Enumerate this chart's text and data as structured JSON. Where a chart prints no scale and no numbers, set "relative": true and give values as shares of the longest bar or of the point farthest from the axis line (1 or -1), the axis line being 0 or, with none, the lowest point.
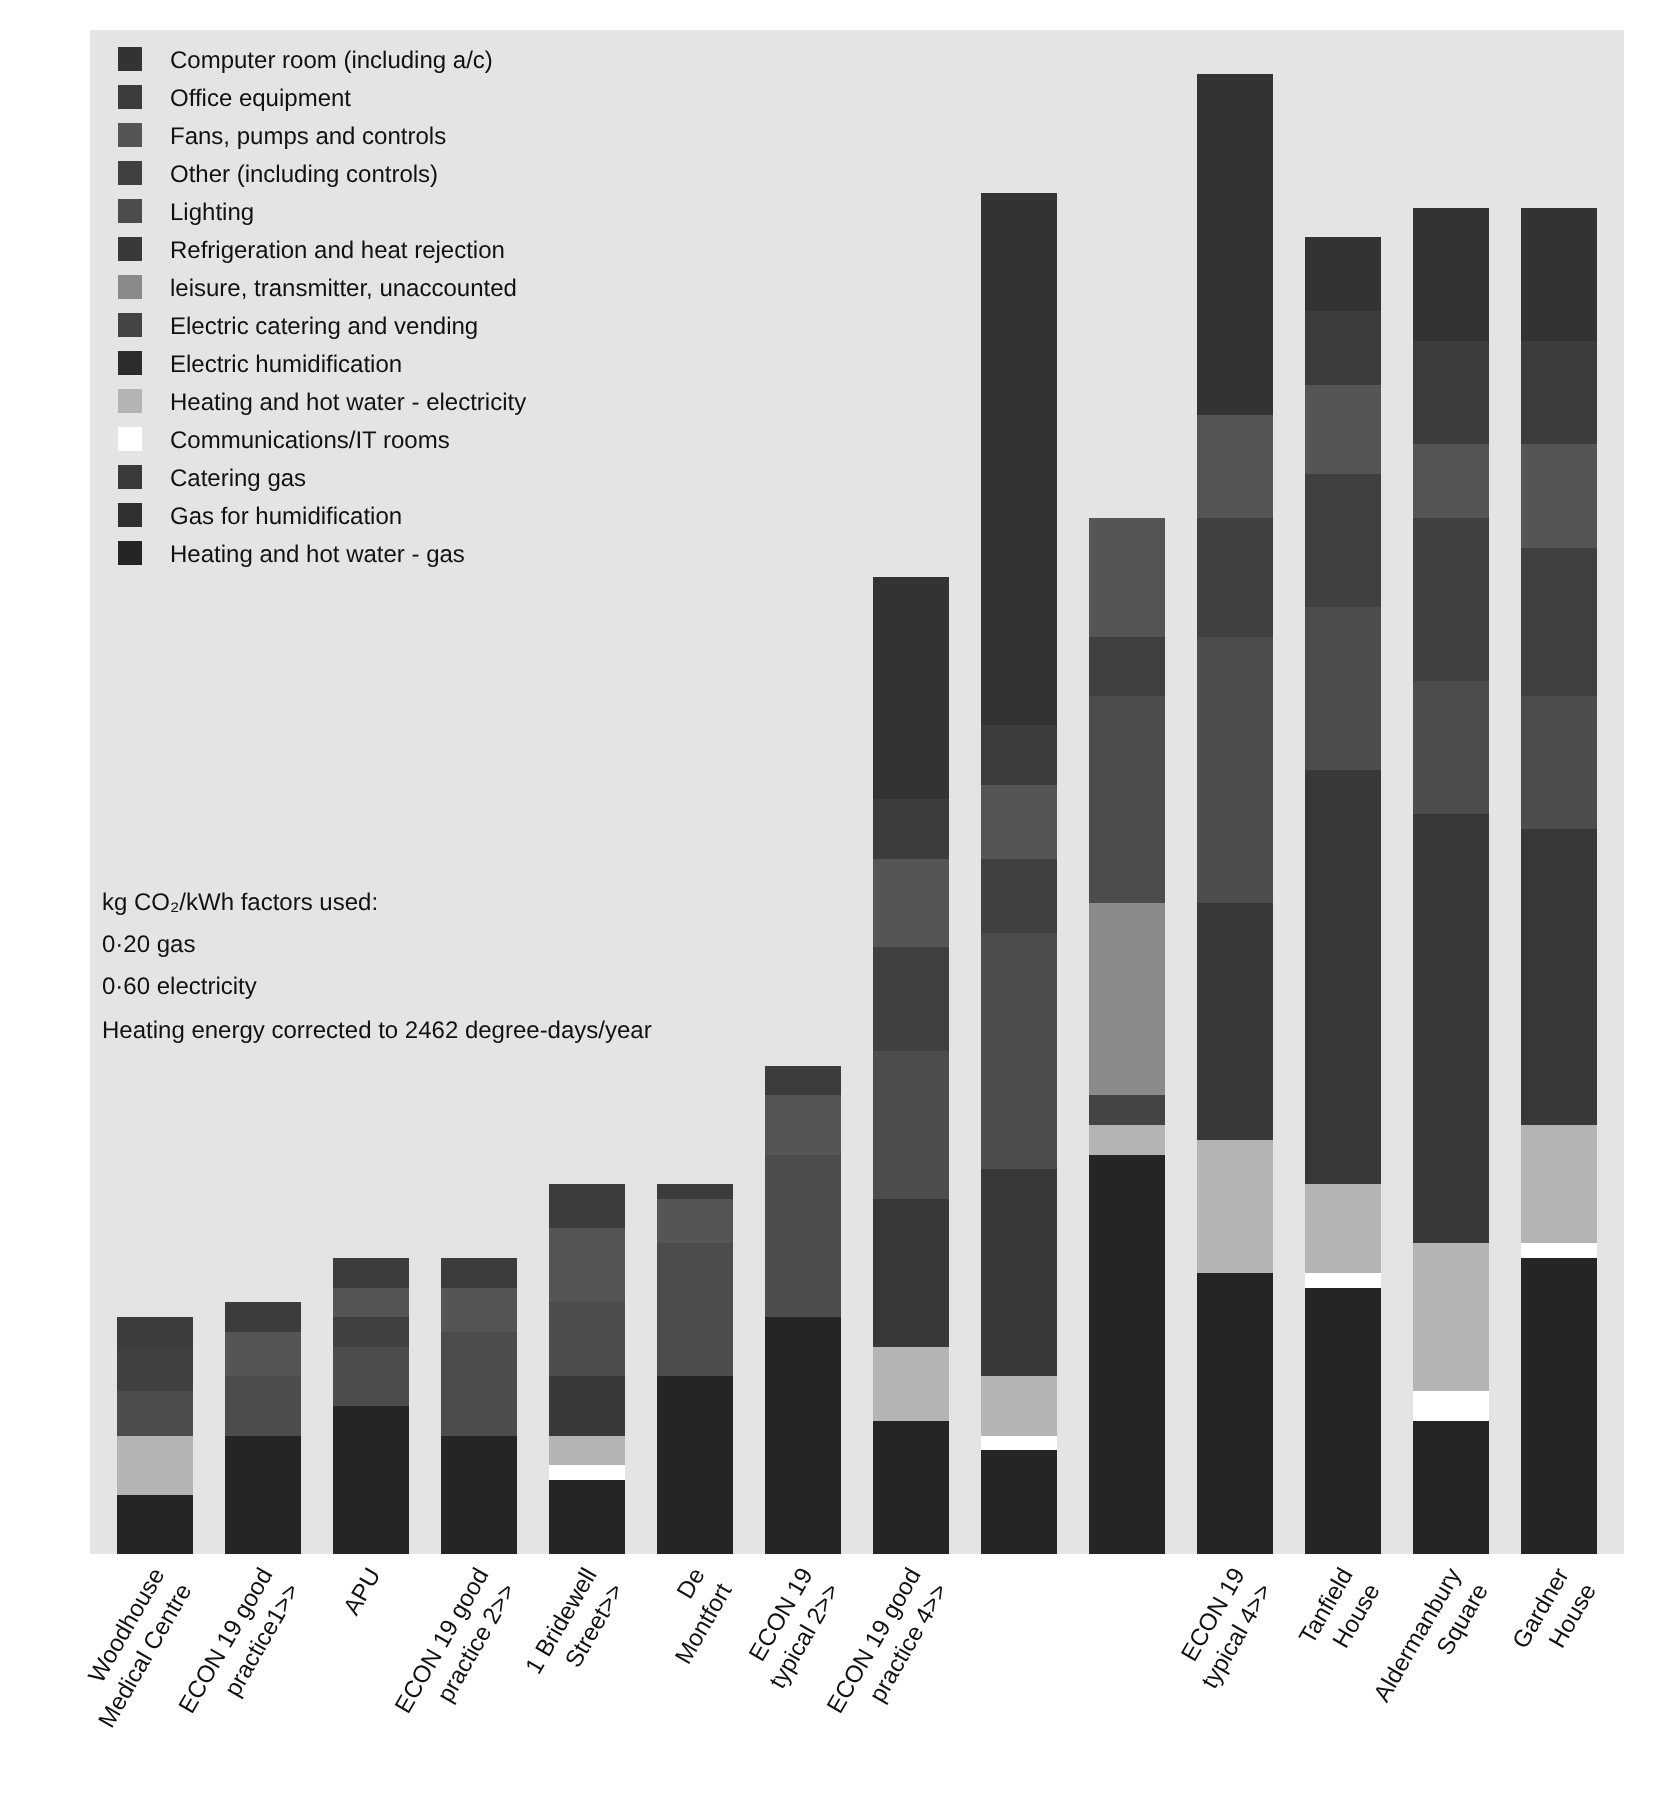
{
  "chart_data": {
    "type": "bar",
    "stacked": true,
    "relative": true,
    "legend": "top left",
    "categories": [
      "Woodhouse Medical Centre",
      "ECON 19 good practice1>>",
      "APU",
      "ECON 19 good practice 2>>",
      "1 Bridewell Street>>",
      "De Montfort",
      "ECON 19 typical 2>>",
      "ECON 19 good practice 4>>",
      null,
      null,
      "ECON 19 typical 4>>",
      "Tanfield House",
      "Aldermanbury Square",
      "Gardner House"
    ],
    "series": [
      {
        "name": "Heating and hot water - gas",
        "color": "#252525",
        "values": [
          0.04,
          0.08,
          0.1,
          0.08,
          0.05,
          0.12,
          0.16,
          0.09,
          0.07,
          0.27,
          0.19,
          0.18,
          0.09,
          0.2
        ]
      },
      {
        "name": "Gas for humidification",
        "color": "#303030",
        "values": [
          0,
          0,
          0,
          0,
          0,
          0,
          0,
          0,
          0,
          0,
          0,
          0,
          0,
          0
        ]
      },
      {
        "name": "Catering gas",
        "color": "#3a3a3a",
        "values": [
          0,
          0,
          0,
          0,
          0,
          0,
          0,
          0,
          0,
          0,
          0,
          0,
          0,
          0
        ]
      },
      {
        "name": "Communications/IT rooms",
        "color": "#ffffff",
        "values": [
          0,
          0,
          0,
          0,
          0.01,
          0,
          0,
          0,
          0.01,
          0,
          0,
          0.01,
          0.02,
          0.01
        ]
      },
      {
        "name": "Heating and hot water - electricity",
        "color": "#b4b4b4",
        "values": [
          0.04,
          0,
          0,
          0,
          0.02,
          0,
          0,
          0.05,
          0.04,
          0.02,
          0.09,
          0.06,
          0.1,
          0.08
        ]
      },
      {
        "name": "Electric humidification",
        "color": "#2c2c2c",
        "values": [
          0,
          0,
          0,
          0,
          0,
          0,
          0,
          0,
          0,
          0,
          0,
          0,
          0,
          0
        ]
      },
      {
        "name": "Electric catering and vending",
        "color": "#444444",
        "values": [
          0,
          0,
          0,
          0,
          0,
          0,
          0,
          0,
          0,
          0.02,
          0,
          0,
          0,
          0
        ]
      },
      {
        "name": "leisure, transmitter, unaccounted",
        "color": "#8a8a8a",
        "values": [
          0,
          0,
          0,
          0,
          0,
          0,
          0,
          0,
          0,
          0.13,
          0,
          0,
          0,
          0
        ]
      },
      {
        "name": "Refrigeration and heat rejection",
        "color": "#383838",
        "values": [
          0,
          0,
          0,
          0,
          0.04,
          0,
          0,
          0.1,
          0.14,
          0,
          0.16,
          0.28,
          0.29,
          0.2
        ]
      },
      {
        "name": "Lighting",
        "color": "#4c4c4c",
        "values": [
          0.03,
          0.04,
          0.04,
          0.07,
          0.05,
          0.09,
          0.11,
          0.1,
          0.16,
          0.14,
          0.18,
          0.11,
          0.09,
          0.09
        ]
      },
      {
        "name": "Other (including controls)",
        "color": "#404040",
        "values": [
          0.03,
          0,
          0.02,
          0,
          0,
          0,
          0,
          0.07,
          0.05,
          0.04,
          0.08,
          0.09,
          0.11,
          0.1
        ]
      },
      {
        "name": "Fans, pumps and controls",
        "color": "#555555",
        "values": [
          0,
          0.03,
          0.02,
          0.03,
          0.05,
          0.03,
          0.04,
          0.06,
          0.05,
          0.08,
          0.07,
          0.06,
          0.05,
          0.07
        ]
      },
      {
        "name": "Office equipment",
        "color": "#3c3c3c",
        "values": [
          0.02,
          0.02,
          0.02,
          0.02,
          0.03,
          0.01,
          0.02,
          0.04,
          0.04,
          0,
          0,
          0.05,
          0.07,
          0.07
        ]
      },
      {
        "name": "Computer room (including a/c)",
        "color": "#333333",
        "values": [
          0,
          0,
          0,
          0,
          0,
          0,
          0,
          0.15,
          0.36,
          0,
          0.23,
          0.05,
          0.09,
          0.09
        ]
      }
    ],
    "annotations": [
      "kg CO₂/kWh factors used:",
      "0·20 gas",
      "0·60 electricity",
      "Heating energy corrected to 2462 degree-days/year"
    ]
  }
}
